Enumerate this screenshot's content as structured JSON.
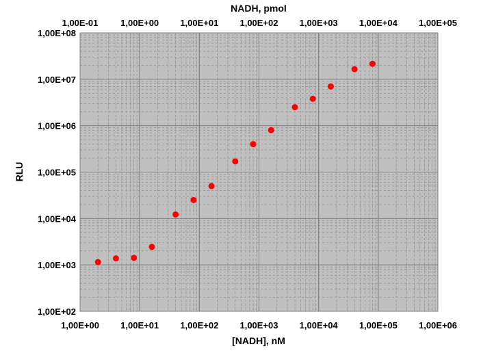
{
  "chart_data": {
    "type": "scatter",
    "xlabel": "[NADH], nM",
    "ylabel": "RLU",
    "x2label": "NADH, pmol",
    "x_scale": "log",
    "y_scale": "log",
    "xlim": [
      1,
      1000000
    ],
    "ylim": [
      100,
      100000000
    ],
    "x2lim": [
      0.1,
      100000
    ],
    "x_ticks": [
      "1,00E+00",
      "1,00E+01",
      "1,00E+02",
      "1,00E+03",
      "1,00E+04",
      "1,00E+05",
      "1,00E+06"
    ],
    "x2_ticks": [
      "1,00E-01",
      "1,00E+00",
      "1,00E+01",
      "1,00E+02",
      "1,00E+03",
      "1,00E+04",
      "1,00E+05"
    ],
    "y_ticks": [
      "1,00E+02",
      "1,00E+03",
      "1,00E+04",
      "1,00E+05",
      "1,00E+06",
      "1,00E+07",
      "1,00E+08"
    ],
    "grid": true,
    "plot_background": "#c0c0c0",
    "marker_color": "#ff0000",
    "series": [
      {
        "points": [
          [
            2,
            1150
          ],
          [
            4,
            1380
          ],
          [
            8,
            1420
          ],
          [
            16,
            2450
          ],
          [
            40,
            12200
          ],
          [
            80,
            25000
          ],
          [
            160,
            50000
          ],
          [
            400,
            170000
          ],
          [
            800,
            400000
          ],
          [
            1600,
            800000
          ],
          [
            4000,
            2500000
          ],
          [
            8000,
            3800000
          ],
          [
            16000,
            7000000
          ],
          [
            40000,
            16500000
          ],
          [
            80000,
            21500000
          ]
        ]
      }
    ]
  }
}
